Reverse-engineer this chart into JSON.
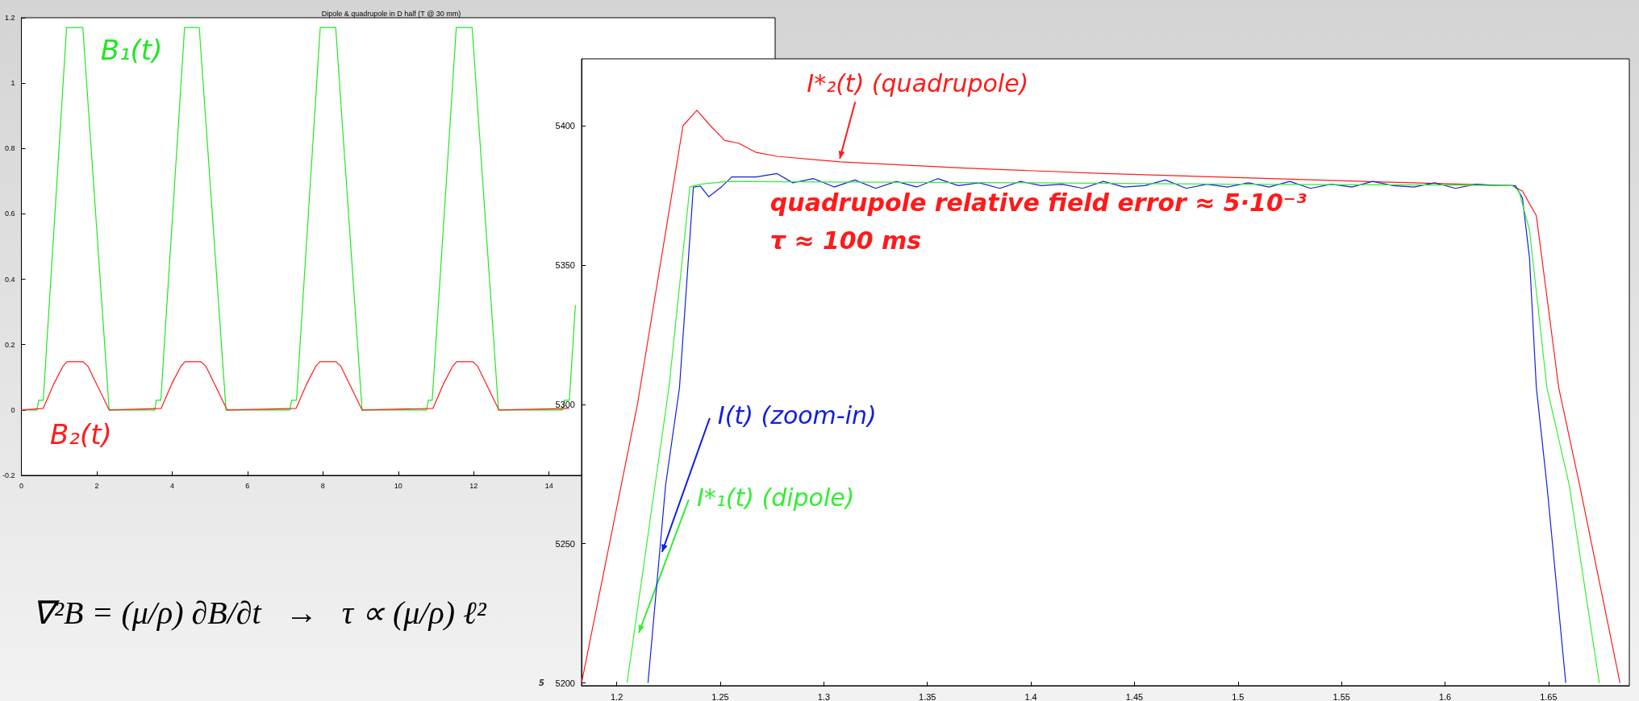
{
  "chart_data": [
    {
      "type": "line",
      "title": "Dipole & quadrupole in D half (T @ 30 mm)",
      "xlim": [
        0,
        20
      ],
      "xticks": [
        0,
        2,
        4,
        6,
        8,
        10,
        12,
        14
      ],
      "ylim": [
        -0.2,
        1.2
      ],
      "yticks": [
        -0.2,
        0,
        0.2,
        0.4,
        0.6,
        0.8,
        1,
        1.2
      ],
      "grid": false,
      "legend": false,
      "series": [
        {
          "name": "B₁(t)",
          "color": "#22e622",
          "x": [
            0,
            0.41,
            0.46,
            0.58,
            1.2,
            1.63,
            2.33,
            3.54,
            3.58,
            3.7,
            4.33,
            4.72,
            5.43,
            7.12,
            7.17,
            7.3,
            7.93,
            8.34,
            9.04,
            10.75,
            10.8,
            10.9,
            11.54,
            11.96,
            12.66,
            14.36,
            14.41,
            14.54,
            14.7
          ],
          "values": [
            0,
            0,
            0.03,
            0.03,
            1.17,
            1.17,
            0,
            0,
            0.03,
            0.03,
            1.17,
            1.17,
            0,
            0,
            0.03,
            0.03,
            1.17,
            1.17,
            0,
            0,
            0.03,
            0.03,
            1.17,
            1.17,
            0,
            0,
            0.03,
            0.03,
            0.32
          ]
        },
        {
          "name": "B₂(t)",
          "color": "#ff1a1a",
          "x": [
            0,
            0.58,
            0.86,
            1.11,
            1.21,
            1.63,
            1.76,
            2.33,
            3.71,
            3.99,
            4.24,
            4.34,
            4.76,
            4.89,
            5.46,
            7.29,
            7.57,
            7.82,
            7.92,
            8.34,
            8.47,
            9.04,
            10.92,
            11.2,
            11.45,
            11.55,
            11.97,
            12.1,
            12.67,
            14.53
          ],
          "values": [
            0,
            0.005,
            0.08,
            0.135,
            0.148,
            0.148,
            0.135,
            0,
            0.005,
            0.08,
            0.135,
            0.148,
            0.148,
            0.135,
            0,
            0.005,
            0.08,
            0.135,
            0.148,
            0.148,
            0.135,
            0,
            0.005,
            0.08,
            0.135,
            0.148,
            0.148,
            0.135,
            0,
            0.005
          ]
        }
      ],
      "annotations": [
        "∇²B = (μ/ρ) ∂B/∂t   →   τ ∝ (μ/ρ) ℓ²",
        "5"
      ]
    },
    {
      "type": "line",
      "xlim": [
        1.183,
        1.689
      ],
      "xticks": [
        1.2,
        1.25,
        1.3,
        1.35,
        1.4,
        1.45,
        1.5,
        1.55,
        1.6,
        1.65
      ],
      "ylim": [
        5199,
        5424
      ],
      "yticks": [
        5200,
        5250,
        5300,
        5350,
        5400
      ],
      "grid": false,
      "legend": false,
      "series": [
        {
          "name": "I*₂(t) (quadrupole)",
          "color": "#ff1a1a",
          "x": [
            1.183,
            1.21,
            1.232,
            1.2387,
            1.2452,
            1.2522,
            1.2589,
            1.2673,
            1.2774,
            1.3077,
            1.3682,
            1.4355,
            1.5028,
            1.5701,
            1.6324,
            1.6374,
            1.6441,
            1.6549,
            1.665,
            1.6845
          ],
          "values": [
            5200,
            5300,
            5400,
            5405.5,
            5400,
            5394.7,
            5393.7,
            5390.4,
            5389,
            5387,
            5384.8,
            5382.8,
            5381.3,
            5379.8,
            5378.5,
            5376.5,
            5367.7,
            5306,
            5271,
            5200
          ]
        },
        {
          "name": "I(t) (zoom-in)",
          "color": "#1020e0",
          "x": [
            1.2151,
            1.2236,
            1.2303,
            1.237,
            1.2404,
            1.2444,
            1.2505,
            1.2555,
            1.2673,
            1.2774,
            1.285,
            1.295,
            1.305,
            1.315,
            1.325,
            1.335,
            1.345,
            1.355,
            1.365,
            1.375,
            1.385,
            1.395,
            1.405,
            1.415,
            1.425,
            1.435,
            1.445,
            1.455,
            1.465,
            1.475,
            1.485,
            1.495,
            1.505,
            1.515,
            1.525,
            1.535,
            1.545,
            1.555,
            1.565,
            1.575,
            1.585,
            1.595,
            1.605,
            1.615,
            1.625,
            1.634,
            1.6374,
            1.6408,
            1.6441,
            1.6492,
            1.6583
          ],
          "values": [
            5200,
            5271,
            5306,
            5378,
            5378.3,
            5374.5,
            5378,
            5381.6,
            5381.6,
            5382.8,
            5379.5,
            5381,
            5378,
            5380.5,
            5377.5,
            5380,
            5378,
            5381,
            5378.5,
            5379.5,
            5377.5,
            5380,
            5378.5,
            5379,
            5377.5,
            5380,
            5378,
            5378.5,
            5380.5,
            5377.5,
            5379,
            5378,
            5379.5,
            5378,
            5380,
            5377.5,
            5379,
            5378,
            5380,
            5378.5,
            5378,
            5379.5,
            5377.5,
            5379,
            5378.5,
            5378.5,
            5374,
            5352.5,
            5306,
            5271,
            5200
          ]
        },
        {
          "name": "I*₁(t) (dipole)",
          "color": "#33ee33",
          "x": [
            1.205,
            1.2185,
            1.2252,
            1.2353,
            1.2404,
            1.2538,
            1.3,
            1.4,
            1.5,
            1.6,
            1.6324,
            1.6357,
            1.6408,
            1.6492,
            1.66,
            1.6745
          ],
          "values": [
            5200,
            5271,
            5306,
            5378,
            5379,
            5380,
            5379.8,
            5379.5,
            5379,
            5378.7,
            5378.5,
            5376.5,
            5362.6,
            5306,
            5271,
            5200
          ]
        }
      ],
      "annotations": [
        "quadrupole relative field error ≈ 5·10⁻³",
        "τ ≈ 100 ms"
      ]
    }
  ]
}
